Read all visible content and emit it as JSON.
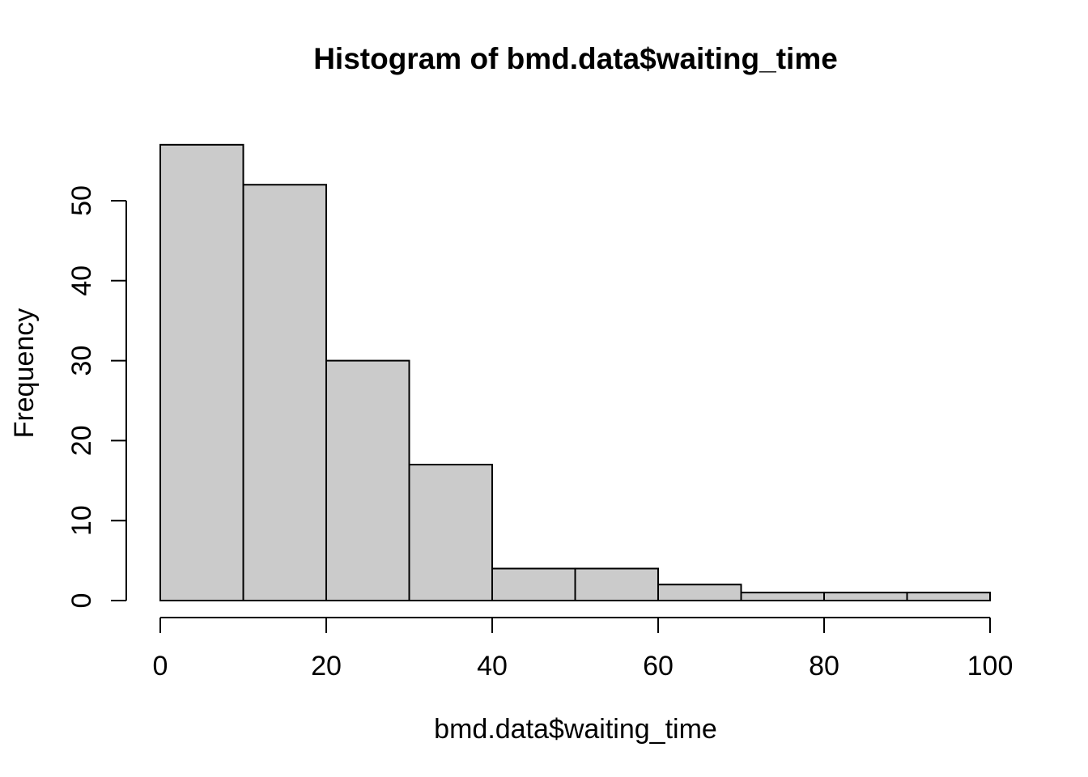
{
  "chart_data": {
    "type": "histogram",
    "title": "Histogram of bmd.data$waiting_time",
    "xlabel": "bmd.data$waiting_time",
    "ylabel": "Frequency",
    "breaks": [
      0,
      10,
      20,
      30,
      40,
      50,
      60,
      70,
      80,
      90,
      100
    ],
    "counts": [
      57,
      52,
      30,
      17,
      4,
      4,
      2,
      1,
      1,
      1
    ],
    "x_ticks": [
      0,
      20,
      40,
      60,
      80,
      100
    ],
    "y_ticks": [
      0,
      10,
      20,
      30,
      40,
      50
    ],
    "xlim": [
      0,
      100
    ],
    "ylim": [
      0,
      50
    ],
    "grid": false,
    "legend": "none",
    "bar_fill": "#CBCBCB",
    "bar_stroke": "#000000",
    "axis_color": "#000000",
    "text_color": "#000000",
    "background": "#FFFFFF"
  }
}
